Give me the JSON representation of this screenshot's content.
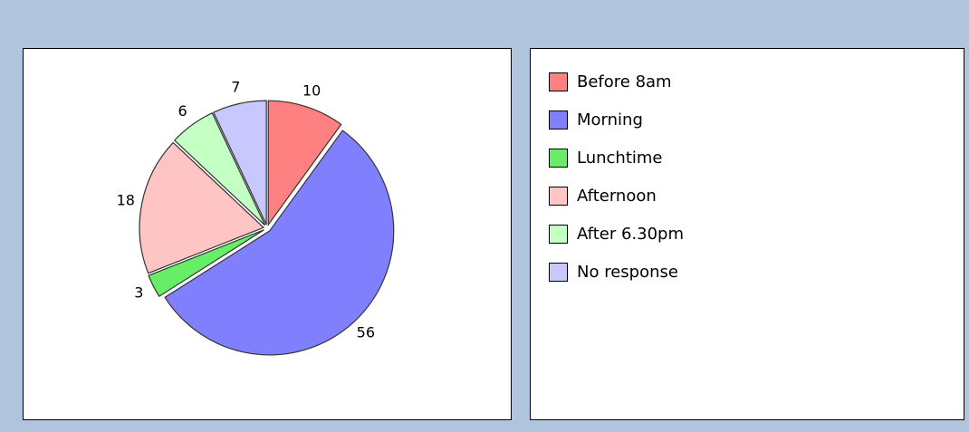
{
  "chart_data": {
    "type": "pie",
    "categories": [
      "Before 8am",
      "Morning",
      "Lunchtime",
      "Afternoon",
      "After 6.30pm",
      "No response"
    ],
    "values": [
      10,
      56,
      3,
      18,
      6,
      7
    ],
    "colors": [
      "#ff8080",
      "#8080ff",
      "#66ee66",
      "#ffc4c4",
      "#c4ffc4",
      "#c8c8ff"
    ],
    "legend": "right"
  }
}
